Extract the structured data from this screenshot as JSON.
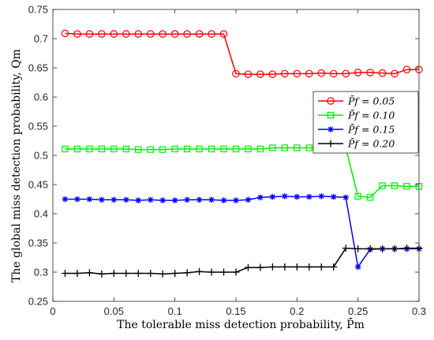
{
  "chart_data": {
    "type": "line",
    "xlabel": "The tolerable miss detection probability, P̄m",
    "ylabel": "The global miss detection probability, Qm",
    "xlim": [
      0,
      0.3
    ],
    "ylim": [
      0.25,
      0.75
    ],
    "xticks": [
      "0",
      "0.05",
      "0.1",
      "0.15",
      "0.2",
      "0.25",
      "0.3"
    ],
    "yticks": [
      "0.25",
      "0.3",
      "0.35",
      "0.4",
      "0.45",
      "0.5",
      "0.55",
      "0.6",
      "0.65",
      "0.7",
      "0.75"
    ],
    "grid": false,
    "legend_position": "right",
    "x": [
      0.01,
      0.02,
      0.03,
      0.04,
      0.05,
      0.06,
      0.07,
      0.08,
      0.09,
      0.1,
      0.11,
      0.12,
      0.13,
      0.14,
      0.15,
      0.16,
      0.17,
      0.18,
      0.19,
      0.2,
      0.21,
      0.22,
      0.23,
      0.24,
      0.25,
      0.26,
      0.27,
      0.28,
      0.29,
      0.3
    ],
    "series": [
      {
        "name": "P̄f = 0.05",
        "color": "#ff0000",
        "marker": "circle",
        "values": [
          0.709,
          0.708,
          0.708,
          0.708,
          0.708,
          0.708,
          0.708,
          0.708,
          0.708,
          0.708,
          0.708,
          0.708,
          0.708,
          0.708,
          0.64,
          0.639,
          0.639,
          0.639,
          0.64,
          0.64,
          0.64,
          0.641,
          0.64,
          0.64,
          0.642,
          0.642,
          0.641,
          0.64,
          0.647,
          0.647
        ]
      },
      {
        "name": "P̄f = 0.10",
        "color": "#00ee00",
        "marker": "square",
        "values": [
          0.511,
          0.511,
          0.511,
          0.511,
          0.511,
          0.511,
          0.51,
          0.51,
          0.51,
          0.511,
          0.511,
          0.511,
          0.511,
          0.511,
          0.511,
          0.511,
          0.511,
          0.513,
          0.513,
          0.513,
          0.513,
          0.513,
          0.513,
          0.513,
          0.43,
          0.428,
          0.448,
          0.448,
          0.447,
          0.447
        ]
      },
      {
        "name": "P̄f = 0.15",
        "color": "#0000ff",
        "marker": "star",
        "values": [
          0.425,
          0.425,
          0.425,
          0.424,
          0.424,
          0.424,
          0.423,
          0.424,
          0.423,
          0.423,
          0.424,
          0.424,
          0.424,
          0.423,
          0.423,
          0.424,
          0.428,
          0.429,
          0.43,
          0.429,
          0.429,
          0.43,
          0.429,
          0.428,
          0.309,
          0.339,
          0.34,
          0.34,
          0.34,
          0.34
        ]
      },
      {
        "name": "P̄f = 0.20",
        "color": "#000000",
        "marker": "plus",
        "values": [
          0.298,
          0.298,
          0.299,
          0.297,
          0.298,
          0.298,
          0.298,
          0.298,
          0.297,
          0.298,
          0.299,
          0.301,
          0.3,
          0.3,
          0.3,
          0.308,
          0.308,
          0.309,
          0.309,
          0.309,
          0.309,
          0.309,
          0.309,
          0.341,
          0.34,
          0.34,
          0.34,
          0.34,
          0.341,
          0.341
        ]
      }
    ]
  }
}
